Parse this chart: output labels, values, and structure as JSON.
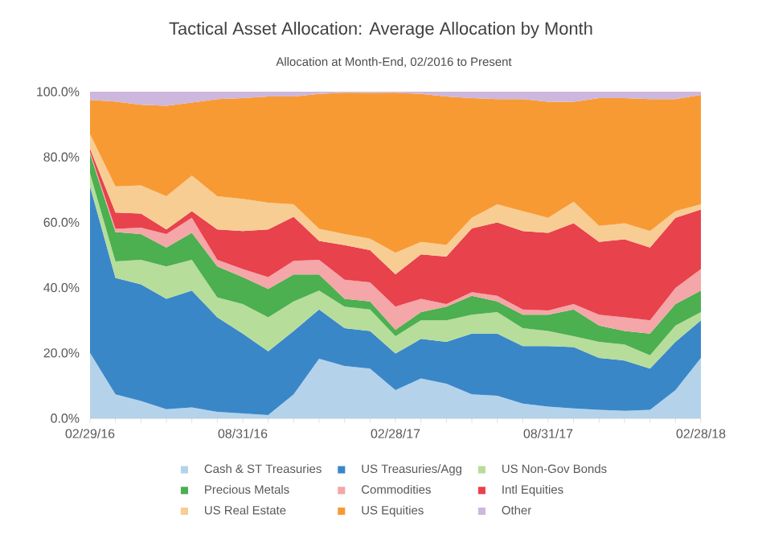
{
  "chart_data": {
    "type": "area",
    "stacked": true,
    "title": "Tactical Asset Allocation: Average Allocation by Month",
    "subtitle": "Allocation at Month-End, 02/2016 to Present",
    "categories": [
      "02/29/16",
      null,
      null,
      null,
      null,
      null,
      "08/31/16",
      null,
      null,
      null,
      null,
      null,
      "02/28/17",
      null,
      null,
      null,
      null,
      null,
      "08/31/17",
      null,
      null,
      null,
      null,
      null,
      "02/28/18"
    ],
    "ylim": [
      0,
      100
    ],
    "yticks": [
      {
        "value": 0,
        "label": "0.0%"
      },
      {
        "value": 20,
        "label": "20.0%"
      },
      {
        "value": 40,
        "label": "40.0%"
      },
      {
        "value": 60,
        "label": "60.0%"
      },
      {
        "value": 80,
        "label": "80.0%"
      },
      {
        "value": 100,
        "label": "100.0%"
      }
    ],
    "legend": "bottom",
    "series": [
      {
        "name": "Cash & ST Treasuries",
        "color": "#b4d3ea",
        "values": [
          20,
          7.3,
          5.3,
          2.8,
          3.3,
          2.0,
          1.5,
          1.0,
          7.3,
          18.2,
          16,
          15.2,
          8.6,
          12.2,
          10.6,
          7.3,
          6.9,
          4.5,
          3.6,
          3,
          2.6,
          2.3,
          2.6,
          8.6,
          18.5
        ]
      },
      {
        "name": "US Treasuries/Agg",
        "color": "#3a87c8",
        "values": [
          51,
          35.7,
          35.7,
          33.8,
          35.8,
          28.9,
          24.4,
          19.5,
          19.4,
          15.1,
          11.6,
          11.5,
          11.2,
          12.1,
          12.8,
          18.6,
          19,
          17.6,
          18.5,
          18.8,
          15.9,
          15.4,
          12.6,
          14.8,
          11.5
        ]
      },
      {
        "name": "US Non-Gov Bonds",
        "color": "#b7dd9a",
        "values": [
          4,
          5,
          7.5,
          9.9,
          9.4,
          6.1,
          9.1,
          10.4,
          9.1,
          5.8,
          6.6,
          6.6,
          5.3,
          5.7,
          6.6,
          5.8,
          6.6,
          5.5,
          4.6,
          3.3,
          4.9,
          4.9,
          4.1,
          5,
          2.5
        ]
      },
      {
        "name": "Precious Metals",
        "color": "#4caf50",
        "values": [
          6,
          9,
          7.9,
          5.8,
          8.3,
          9.5,
          8.2,
          8.7,
          8.2,
          4.9,
          2.4,
          2.5,
          2,
          2.5,
          4.2,
          5.8,
          3.3,
          4.1,
          5,
          8.2,
          5,
          4.1,
          6.6,
          6.6,
          6.6
        ]
      },
      {
        "name": "Commodities",
        "color": "#f4a6a8",
        "values": [
          0.5,
          1,
          2,
          4.1,
          4.6,
          2,
          2.5,
          3.6,
          4.2,
          4.5,
          5.8,
          5.8,
          7.1,
          4.1,
          0.8,
          1.1,
          1.7,
          1.6,
          1.3,
          1.7,
          3.3,
          4.2,
          4.1,
          4.9,
          6.6
        ]
      },
      {
        "name": "Intl Equities",
        "color": "#e8424c",
        "values": [
          1,
          5,
          4.3,
          1.4,
          2,
          9.3,
          11.6,
          14.6,
          13.5,
          5.8,
          10.6,
          9.9,
          9.9,
          13.6,
          14.5,
          19.5,
          22.5,
          24,
          23.8,
          24.7,
          22.3,
          23.9,
          22.3,
          21.5,
          18.2
        ]
      },
      {
        "name": "US Real Estate",
        "color": "#f7cd94",
        "values": [
          4.5,
          8,
          8.6,
          10.2,
          10.9,
          10.2,
          9.9,
          8.2,
          3.8,
          3.7,
          3.4,
          3.5,
          6.6,
          3.8,
          3.6,
          3.3,
          5.5,
          6.1,
          4.6,
          6.6,
          4.9,
          4.9,
          5,
          2,
          1.6
        ]
      },
      {
        "name": "US Equities",
        "color": "#f89a33",
        "values": [
          10.5,
          26,
          24.7,
          27.7,
          22.4,
          29.7,
          30.8,
          32.5,
          33,
          41.3,
          43.3,
          44.6,
          49,
          45.3,
          45.4,
          36.6,
          32.2,
          34.3,
          35.5,
          30.6,
          39.1,
          38.3,
          40.4,
          34.3,
          33.5
        ]
      },
      {
        "name": "Other",
        "color": "#cdb7dd",
        "values": [
          2.5,
          3,
          4,
          4.3,
          3.3,
          2.3,
          2,
          1.5,
          1.5,
          0.7,
          0.3,
          0.4,
          0.3,
          0.7,
          1.5,
          2,
          2.3,
          2.3,
          3.1,
          3.1,
          2,
          2,
          2.3,
          2.3,
          1
        ]
      }
    ]
  }
}
